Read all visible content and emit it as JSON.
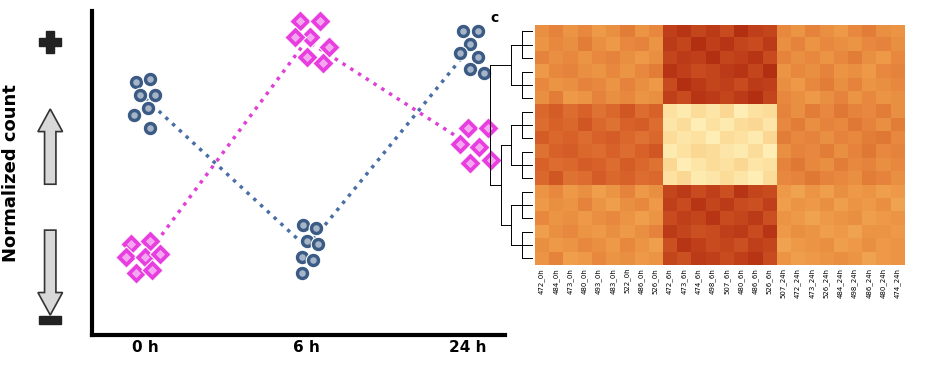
{
  "chart_data": [
    {
      "type": "scatter",
      "ylabel": "Normalized count",
      "xlim": [
        -0.33,
        2.23
      ],
      "xticks": [
        {
          "value": 0,
          "label": "0 h"
        },
        {
          "value": 1,
          "label": "6 h"
        },
        {
          "value": 2,
          "label": "24 h"
        }
      ],
      "ylim": [
        0,
        10
      ],
      "yticks": [],
      "tick_labels": "x",
      "series": [
        {
          "type": "scatter",
          "color": "#3b5b85",
          "marker": "circle",
          "x": [
            -0.06,
            0.03,
            -0.03,
            0.06,
            0.02,
            -0.07,
            0.03
          ],
          "values": [
            7.8,
            7.9,
            7.4,
            7.4,
            7.0,
            6.8,
            6.4
          ]
        },
        {
          "type": "scatter",
          "color": "#3b5b85",
          "marker": "circle",
          "x": [
            0.98,
            1.06,
            1.0,
            1.07,
            0.97,
            1.04,
            0.97
          ],
          "values": [
            3.4,
            3.3,
            2.9,
            2.8,
            2.4,
            2.3,
            1.9
          ]
        },
        {
          "type": "scatter",
          "color": "#3b5b85",
          "marker": "circle",
          "x": [
            1.97,
            2.06,
            2.01,
            1.95,
            2.06,
            2.01,
            2.1
          ],
          "values": [
            9.4,
            9.4,
            9.0,
            8.7,
            8.6,
            8.2,
            8.1
          ]
        },
        {
          "type": "scatter",
          "color": "#e83ee0",
          "marker": "diamond",
          "x": [
            -0.09,
            0.03,
            -0.12,
            0.0,
            0.09,
            -0.06,
            0.04
          ],
          "values": [
            2.8,
            2.9,
            2.4,
            2.4,
            2.5,
            1.9,
            2.0
          ]
        },
        {
          "type": "scatter",
          "color": "#e83ee0",
          "marker": "diamond",
          "x": [
            0.96,
            1.08,
            1.02,
            0.93,
            1.14,
            1.0,
            1.1
          ],
          "values": [
            9.7,
            9.7,
            9.2,
            9.2,
            8.9,
            8.6,
            8.4
          ]
        },
        {
          "type": "scatter",
          "color": "#e83ee0",
          "marker": "diamond",
          "x": [
            2.0,
            2.12,
            1.95,
            2.07,
            2.01,
            2.14
          ],
          "values": [
            6.4,
            6.4,
            5.9,
            5.8,
            5.3,
            5.4
          ]
        },
        {
          "type": "line",
          "color": "#4a6fa5",
          "line_style": "dotted",
          "x": [
            0,
            1,
            2
          ],
          "values": [
            7.3,
            2.7,
            8.8
          ]
        },
        {
          "type": "line",
          "color": "#e040d8",
          "line_style": "dotted",
          "x": [
            0,
            1,
            2
          ],
          "values": [
            2.4,
            9.1,
            5.9
          ]
        }
      ]
    },
    {
      "type": "heatmap",
      "label": "c",
      "tick_labels": "x",
      "zlim": [
        -2,
        2
      ],
      "columns": [
        "472_0h",
        "484_0h",
        "473_0h",
        "480_0h",
        "493_0h",
        "483_0h",
        "522_0h",
        "486_0h",
        "526_0h",
        "472_6h",
        "473_6h",
        "474_6h",
        "498_6h",
        "507_6h",
        "480_6h",
        "486_6h",
        "526_6h",
        "507_24h",
        "472_24h",
        "473_24h",
        "526_24h",
        "484_24h",
        "498_24h",
        "486_24h",
        "480_24h",
        "474_24h"
      ],
      "cells": [
        [
          0.2,
          0.4,
          0.1,
          0.3,
          0.0,
          0.2,
          0.5,
          0.1,
          0.3,
          1.6,
          1.8,
          1.5,
          1.7,
          1.4,
          1.9,
          1.6,
          1.5,
          0.3,
          0.1,
          0.4,
          0.2,
          0.0,
          0.3,
          0.5,
          0.2,
          0.1
        ],
        [
          0.1,
          0.3,
          0.2,
          0.5,
          0.2,
          0.0,
          0.3,
          0.4,
          0.1,
          1.7,
          1.5,
          1.9,
          1.6,
          1.8,
          1.5,
          1.4,
          1.7,
          0.2,
          0.4,
          0.1,
          0.3,
          0.2,
          0.1,
          0.3,
          0.4,
          0.2
        ],
        [
          0.4,
          0.2,
          0.3,
          0.1,
          0.3,
          0.4,
          0.2,
          0.0,
          0.2,
          1.5,
          1.7,
          1.6,
          1.9,
          1.5,
          1.6,
          1.8,
          1.4,
          0.4,
          0.2,
          0.3,
          0.1,
          0.3,
          0.5,
          0.2,
          0.0,
          0.3
        ],
        [
          0.0,
          0.3,
          0.4,
          0.2,
          0.1,
          0.3,
          0.1,
          0.3,
          0.5,
          1.8,
          1.6,
          1.4,
          1.5,
          1.7,
          1.8,
          1.5,
          1.9,
          0.1,
          0.3,
          0.2,
          0.4,
          0.1,
          0.2,
          0.0,
          0.3,
          0.4
        ],
        [
          0.3,
          0.1,
          0.2,
          0.4,
          0.3,
          0.1,
          0.4,
          0.2,
          0.0,
          1.4,
          1.9,
          1.7,
          1.5,
          1.6,
          1.4,
          1.7,
          1.6,
          0.2,
          0.0,
          0.3,
          0.5,
          0.2,
          0.4,
          0.1,
          0.2,
          0.3
        ],
        [
          0.2,
          0.5,
          0.0,
          0.1,
          0.4,
          0.2,
          0.3,
          0.1,
          0.2,
          1.6,
          1.4,
          1.8,
          1.7,
          1.5,
          1.7,
          1.9,
          1.5,
          0.3,
          0.2,
          0.0,
          0.2,
          0.4,
          0.1,
          0.3,
          0.1,
          0.2
        ],
        [
          0.9,
          1.1,
          0.8,
          1.0,
          0.7,
          0.9,
          1.2,
          0.8,
          1.0,
          -1.6,
          -1.8,
          -1.5,
          -1.7,
          -1.4,
          -1.9,
          -1.6,
          -1.5,
          0.4,
          0.2,
          0.5,
          0.3,
          0.6,
          0.4,
          0.3,
          0.5,
          0.2
        ],
        [
          0.8,
          1.0,
          0.9,
          1.2,
          0.9,
          0.7,
          1.0,
          1.1,
          0.8,
          -1.7,
          -1.5,
          -1.9,
          -1.6,
          -1.8,
          -1.5,
          -1.4,
          -1.7,
          0.3,
          0.5,
          0.2,
          0.4,
          0.3,
          0.6,
          0.4,
          0.2,
          0.5
        ],
        [
          1.1,
          0.9,
          1.0,
          0.8,
          1.0,
          1.1,
          0.9,
          0.7,
          0.9,
          -1.5,
          -1.7,
          -1.6,
          -1.9,
          -1.5,
          -1.6,
          -1.8,
          -1.4,
          0.5,
          0.3,
          0.4,
          0.2,
          0.4,
          0.3,
          0.5,
          0.6,
          0.3
        ],
        [
          0.7,
          1.0,
          1.1,
          0.9,
          0.8,
          1.0,
          0.8,
          1.0,
          1.2,
          -1.8,
          -1.6,
          -1.4,
          -1.5,
          -1.7,
          -1.8,
          -1.5,
          -1.9,
          0.2,
          0.4,
          0.3,
          0.5,
          0.2,
          0.4,
          0.6,
          0.3,
          0.4
        ],
        [
          1.0,
          0.8,
          0.9,
          1.1,
          1.0,
          0.8,
          1.1,
          0.9,
          0.7,
          -1.4,
          -1.9,
          -1.7,
          -1.5,
          -1.6,
          -1.4,
          -1.7,
          -1.6,
          0.4,
          0.6,
          0.3,
          0.2,
          0.5,
          0.3,
          0.4,
          0.2,
          0.3
        ],
        [
          0.9,
          1.2,
          0.7,
          0.8,
          1.1,
          0.9,
          1.0,
          0.8,
          0.9,
          -1.6,
          -1.4,
          -1.8,
          -1.7,
          -1.5,
          -1.7,
          -1.9,
          -1.5,
          0.3,
          0.4,
          0.6,
          0.4,
          0.3,
          0.2,
          0.5,
          0.4,
          0.2
        ],
        [
          0.1,
          0.3,
          0.0,
          0.2,
          -0.1,
          0.1,
          0.4,
          0.0,
          0.2,
          1.5,
          1.7,
          1.4,
          1.6,
          1.3,
          1.8,
          1.5,
          1.4,
          0.0,
          -0.2,
          0.1,
          -0.1,
          0.2,
          0.0,
          0.1,
          -0.1,
          0.0
        ],
        [
          0.0,
          0.2,
          0.1,
          0.4,
          0.1,
          -0.1,
          0.2,
          0.3,
          0.0,
          1.6,
          1.4,
          1.8,
          1.5,
          1.7,
          1.4,
          1.3,
          1.6,
          -0.1,
          0.1,
          0.0,
          0.2,
          -0.1,
          0.1,
          0.0,
          0.2,
          -0.2
        ],
        [
          0.3,
          0.1,
          0.2,
          0.0,
          0.2,
          0.3,
          0.1,
          -0.1,
          0.1,
          1.4,
          1.6,
          1.5,
          1.8,
          1.4,
          1.5,
          1.7,
          1.3,
          0.1,
          0.0,
          -0.2,
          0.0,
          0.1,
          0.2,
          -0.1,
          0.0,
          0.1
        ],
        [
          -0.1,
          0.2,
          0.3,
          0.1,
          0.0,
          0.2,
          0.0,
          0.2,
          0.4,
          1.7,
          1.5,
          1.3,
          1.4,
          1.6,
          1.7,
          1.4,
          1.8,
          0.0,
          0.2,
          0.1,
          -0.1,
          0.0,
          -0.2,
          0.1,
          0.1,
          0.0
        ],
        [
          0.2,
          0.0,
          0.1,
          0.3,
          0.2,
          0.0,
          0.3,
          0.1,
          -0.1,
          1.3,
          1.8,
          1.6,
          1.4,
          1.5,
          1.3,
          1.6,
          1.5,
          -0.2,
          0.0,
          0.1,
          0.2,
          -0.1,
          0.0,
          0.2,
          0.0,
          0.1
        ],
        [
          0.1,
          0.4,
          -0.1,
          0.0,
          0.3,
          0.1,
          0.2,
          0.0,
          0.1,
          1.5,
          1.3,
          1.7,
          1.6,
          1.4,
          1.6,
          1.8,
          1.4,
          0.1,
          -0.1,
          0.0,
          0.1,
          0.2,
          0.1,
          -0.2,
          0.0,
          0.1
        ]
      ],
      "dendrogram": [
        [
          [
            0,
            1,
            2
          ],
          [
            3,
            4,
            5
          ]
        ],
        [
          [
            [
              6,
              7,
              8
            ],
            [
              9,
              10,
              11
            ]
          ],
          [
            [
              12,
              13,
              14
            ],
            [
              15,
              16,
              17
            ]
          ]
        ]
      ]
    }
  ]
}
